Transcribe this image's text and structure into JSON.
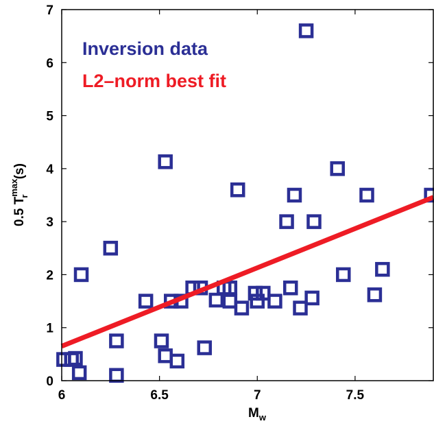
{
  "chart_data": {
    "type": "scatter",
    "xlim": [
      6,
      7.9
    ],
    "ylim": [
      0,
      7
    ],
    "x_ticks": [
      6,
      6.5,
      7,
      7.5
    ],
    "x_tick_labels": [
      "6",
      "6.5",
      "7",
      "7.5"
    ],
    "y_ticks": [
      0,
      1,
      2,
      3,
      4,
      5,
      6,
      7
    ],
    "y_tick_labels": [
      "0",
      "1",
      "2",
      "3",
      "4",
      "5",
      "6",
      "7"
    ],
    "xlabel": {
      "main": "M",
      "sub": "w"
    },
    "ylabel": {
      "prefix": "0.5 T",
      "sup": "max",
      "sub": "r",
      "suffix": " (s)"
    },
    "grid": false,
    "legend_position": "top-left",
    "series": [
      {
        "name": "Inversion data",
        "kind": "scatter",
        "marker": "hollow-square",
        "color": "#2b2f95",
        "points": [
          [
            6.01,
            0.4
          ],
          [
            6.05,
            0.4
          ],
          [
            6.07,
            0.42
          ],
          [
            6.09,
            0.15
          ],
          [
            6.1,
            2.0
          ],
          [
            6.25,
            2.5
          ],
          [
            6.28,
            0.75
          ],
          [
            6.28,
            0.1
          ],
          [
            6.43,
            1.5
          ],
          [
            6.51,
            0.75
          ],
          [
            6.53,
            0.47
          ],
          [
            6.53,
            4.13
          ],
          [
            6.56,
            1.5
          ],
          [
            6.59,
            0.37
          ],
          [
            6.61,
            1.5
          ],
          [
            6.67,
            1.75
          ],
          [
            6.71,
            1.75
          ],
          [
            6.73,
            0.62
          ],
          [
            6.79,
            1.52
          ],
          [
            6.83,
            1.75
          ],
          [
            6.86,
            1.75
          ],
          [
            6.86,
            1.5
          ],
          [
            6.9,
            3.6
          ],
          [
            6.92,
            1.37
          ],
          [
            6.99,
            1.65
          ],
          [
            7.0,
            1.5
          ],
          [
            7.03,
            1.65
          ],
          [
            7.09,
            1.5
          ],
          [
            7.15,
            3.0
          ],
          [
            7.17,
            1.75
          ],
          [
            7.19,
            3.5
          ],
          [
            7.22,
            1.37
          ],
          [
            7.25,
            6.6
          ],
          [
            7.28,
            1.56
          ],
          [
            7.29,
            3.0
          ],
          [
            7.41,
            4.0
          ],
          [
            7.44,
            2.0
          ],
          [
            7.56,
            3.5
          ],
          [
            7.6,
            1.62
          ],
          [
            7.64,
            2.1
          ],
          [
            7.89,
            3.5
          ]
        ]
      },
      {
        "name": "L2-norm best fit",
        "kind": "line",
        "color": "#ee1c25",
        "points": [
          [
            6.0,
            0.65
          ],
          [
            7.9,
            3.46
          ]
        ]
      }
    ]
  },
  "legend": {
    "inversion_label": "Inversion data",
    "fit_label": "L2–norm best fit",
    "inversion_color": "#2b2f95",
    "fit_color": "#ee1c25"
  }
}
